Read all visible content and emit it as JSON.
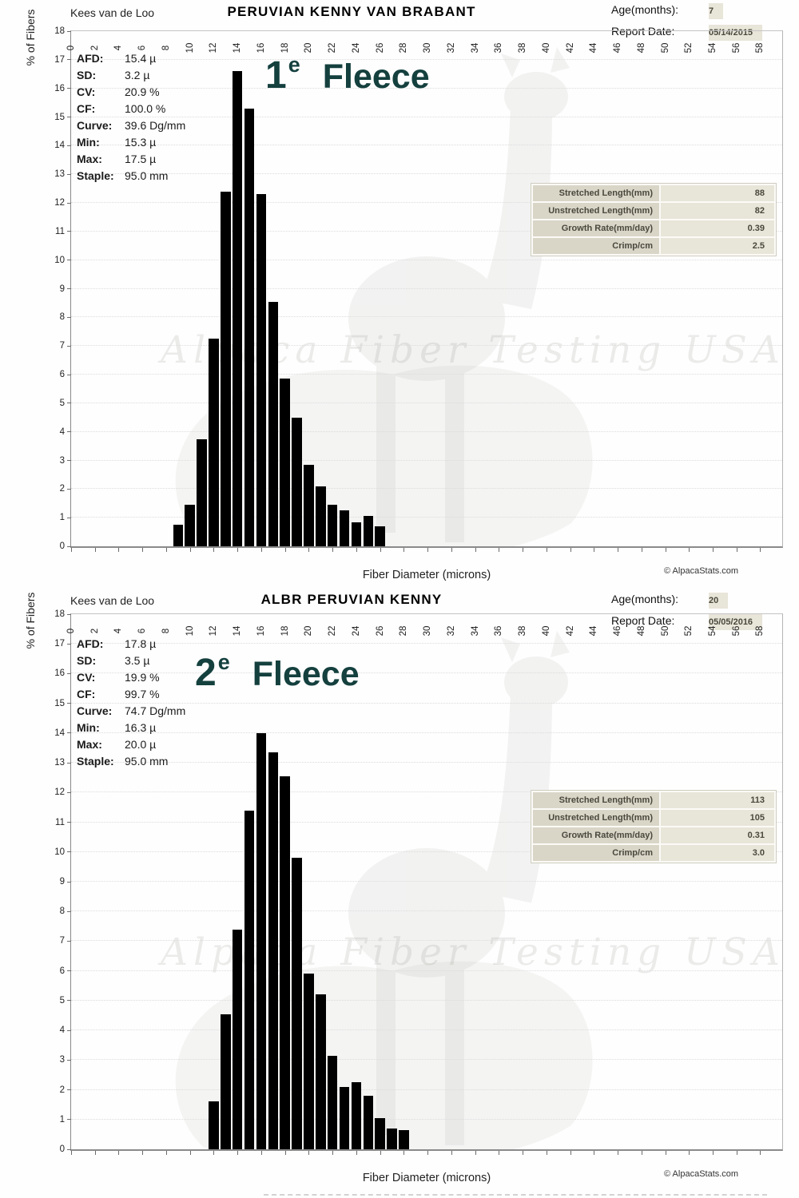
{
  "page": {
    "xlabel": "Fiber Diameter (microns)",
    "ylabel": "% of Fibers",
    "credit": "© AlpacaStats.com",
    "watermark_text": "Alpaca Fiber Testing USA",
    "age_label": "Age(months):",
    "date_label": "Report Date:"
  },
  "colors": {
    "accent_teal": "#14403e",
    "bar": "#000000",
    "table_label_bg": "#d9d6c8",
    "table_value_bg": "#e8e5d9"
  },
  "reports": [
    {
      "owner": "Kees  van de Loo",
      "title": "PERUVIAN KENNY VAN BRABANT",
      "age_months": "7",
      "report_date": "05/14/2015",
      "fleece_label": {
        "number": "1",
        "sup": "e",
        "word": "Fleece"
      },
      "stats": [
        {
          "label": "AFD:",
          "value": "15.4 µ"
        },
        {
          "label": "SD:",
          "value": "3.2 µ"
        },
        {
          "label": "CV:",
          "value": "20.9 %"
        },
        {
          "label": "CF:",
          "value": "100.0 %"
        },
        {
          "label": "Curve:",
          "value": "39.6 Dg/mm"
        },
        {
          "label": "Min:",
          "value": "15.3 µ"
        },
        {
          "label": "Max:",
          "value": "17.5 µ"
        },
        {
          "label": "Staple:",
          "value": "95.0 mm"
        }
      ],
      "measurements": [
        {
          "label": "Stretched Length(mm)",
          "value": "88"
        },
        {
          "label": "Unstretched Length(mm)",
          "value": "82"
        },
        {
          "label": "Growth Rate(mm/day)",
          "value": "0.39"
        },
        {
          "label": "Crimp/cm",
          "value": "2.5"
        }
      ]
    },
    {
      "owner": "Kees  van de Loo",
      "title": "ALBR PERUVIAN KENNY",
      "age_months": "20",
      "report_date": "05/05/2016",
      "fleece_label": {
        "number": "2",
        "sup": "e",
        "word": "Fleece"
      },
      "stats": [
        {
          "label": "AFD:",
          "value": "17.8 µ"
        },
        {
          "label": "SD:",
          "value": "3.5 µ"
        },
        {
          "label": "CV:",
          "value": "19.9 %"
        },
        {
          "label": "CF:",
          "value": "99.7 %"
        },
        {
          "label": "Curve:",
          "value": "74.7 Dg/mm"
        },
        {
          "label": "Min:",
          "value": "16.3 µ"
        },
        {
          "label": "Max:",
          "value": "20.0 µ"
        },
        {
          "label": "Staple:",
          "value": "95.0 mm"
        }
      ],
      "measurements": [
        {
          "label": "Stretched Length(mm)",
          "value": "113"
        },
        {
          "label": "Unstretched Length(mm)",
          "value": "105"
        },
        {
          "label": "Growth Rate(mm/day)",
          "value": "0.31"
        },
        {
          "label": "Crimp/cm",
          "value": "3.0"
        }
      ]
    }
  ],
  "chart_data": [
    {
      "type": "bar",
      "title": "PERUVIAN KENNY VAN BRABANT — 1e Fleece fiber diameter histogram",
      "xlabel": "Fiber Diameter (microns)",
      "ylabel": "% of Fibers",
      "xlim": [
        0,
        58
      ],
      "ylim": [
        0,
        18
      ],
      "x_tick_step": 2,
      "y_tick_step": 1,
      "grid": "horizontal-dotted",
      "bar_color": "#000000",
      "categories": [
        9,
        10,
        11,
        12,
        13,
        14,
        15,
        16,
        17,
        18,
        19,
        20,
        21,
        22,
        23,
        24,
        25,
        26
      ],
      "values": [
        0.75,
        1.45,
        3.75,
        7.25,
        12.4,
        16.6,
        15.3,
        12.3,
        8.55,
        5.85,
        4.5,
        2.85,
        2.1,
        1.45,
        1.25,
        0.85,
        1.05,
        0.7
      ]
    },
    {
      "type": "bar",
      "title": "ALBR PERUVIAN KENNY — 2e Fleece fiber diameter histogram",
      "xlabel": "Fiber Diameter (microns)",
      "ylabel": "% of Fibers",
      "xlim": [
        0,
        58
      ],
      "ylim": [
        0,
        18
      ],
      "x_tick_step": 2,
      "y_tick_step": 1,
      "grid": "horizontal-dotted",
      "bar_color": "#000000",
      "categories": [
        12,
        13,
        14,
        15,
        16,
        17,
        18,
        19,
        20,
        21,
        22,
        23,
        24,
        25,
        26,
        27,
        28
      ],
      "values": [
        1.6,
        4.55,
        7.4,
        11.4,
        14.0,
        13.35,
        12.55,
        9.8,
        5.9,
        5.2,
        3.15,
        2.1,
        2.25,
        1.8,
        1.05,
        0.7,
        0.65
      ]
    }
  ]
}
